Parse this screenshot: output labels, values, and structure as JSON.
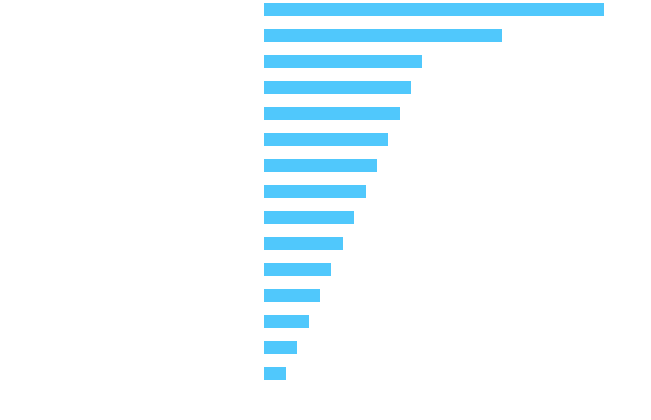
{
  "chart_data": {
    "type": "barh",
    "categories": [
      null,
      null,
      null,
      null,
      null,
      null,
      null,
      null,
      null,
      null,
      null,
      null,
      null,
      null,
      null
    ],
    "values": [
      340,
      238,
      158,
      147,
      136,
      124,
      113,
      102,
      90,
      79,
      67,
      56,
      45,
      33,
      22
    ],
    "color": "#50c8fc",
    "xlim": [
      0,
      340
    ]
  }
}
